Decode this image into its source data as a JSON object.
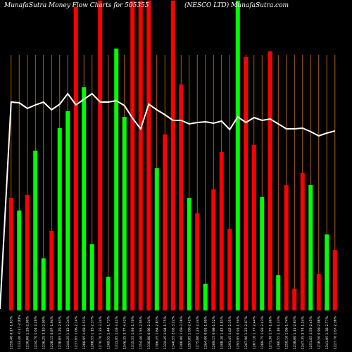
{
  "chart_data": {
    "type": "bar",
    "title_left": "MunafaSutra  Money Flow  Charts for 505355",
    "title_right": "(NESCO LTD) MunafaSutra.com",
    "colors": {
      "background": "#000000",
      "up": "#00ff00",
      "down": "#ff0000",
      "grid": "#cc6600",
      "line": "#ffffff",
      "text": "#ffffff"
    },
    "ylim": [
      0,
      440
    ],
    "line_ylim": [
      0,
      440
    ],
    "categories": [
      "1259.40 0.17-1.83%",
      "1233.40 -0.47-2.00%",
      "1230.80 1.29-2.00%",
      "1234.70 1.64-2.26%",
      "1236.25 2.10-2.90%",
      "1228.15 0.97-1.94%",
      "1238.85 1.29-2.63%",
      "1244.25 1.12-2.34%",
      "1237.65 1.06-2.14%",
      "1286.95 1.69-1.51%",
      "1268.55 1.15-2.37%",
      "1270.70 1.23-3.24%",
      "1269.55 1.44-1.73%",
      "1311.05 1.03-3.41%",
      "1346.35 2.77-4.42%",
      "1315.55 1.93-1.70%",
      "1354.40 1.55-2.95%",
      "1330.80 0.96-2.34%",
      "1306.25 1.84-2.83%",
      "1324.45 1.94-1.75%",
      "1346.55 2.02-3.22%",
      "1306.00 1.69-3.28%",
      "1297.05 1.00-2.42%",
      "1275.80 1.23-2.34%",
      "1264.00 0.93-1.09%",
      "1269.15 0.98-1.52%",
      "1308.30 1.42-1.81%",
      "1291.45 1.62-2.35%",
      "1293.05 0.91-1.50%",
      "1267.90 1.23-2.67%",
      "1287.10 1.77-2.44%",
      "1289.75 1.92-2.43%",
      "1271.30 1.77-1.66%",
      "1266.55 1.18-1.33%",
      "1250.10 1.06-1.74%",
      "1238.60 1.11-2.83%",
      "1247.35 2.74-1.24%",
      "1251.65 1.53-2.45%",
      "1218.50 0.99-2.98%",
      "1241.05 1.38-2.77%",
      "1227.70 1.67-2.38%"
    ],
    "series": [
      {
        "values": [
          160,
          142,
          164,
          227,
          74,
          113,
          259,
          283,
          431,
          317,
          94,
          440,
          48,
          372,
          275,
          440,
          440,
          440,
          202,
          250,
          440,
          321,
          160,
          138,
          38,
          172,
          225,
          116,
          440,
          360,
          235,
          161,
          368,
          50,
          178,
          31,
          195,
          178,
          52,
          108,
          86
        ],
        "directions": [
          "down",
          "up",
          "down",
          "up",
          "up",
          "down",
          "up",
          "up",
          "down",
          "up",
          "up",
          "down",
          "up",
          "up",
          "up",
          "down",
          "down",
          "down",
          "up",
          "down",
          "down",
          "down",
          "up",
          "down",
          "up",
          "down",
          "down",
          "down",
          "up",
          "down",
          "down",
          "up",
          "down",
          "up",
          "down",
          "down",
          "down",
          "up",
          "down",
          "up",
          "down"
        ]
      },
      {
        "type": "line",
        "values": [
          296,
          295,
          287,
          292,
          296,
          285,
          293,
          308,
          292,
          300,
          308,
          296,
          296,
          298,
          291,
          273,
          258,
          293,
          285,
          278,
          270,
          270,
          265,
          267,
          268,
          266,
          269,
          257,
          275,
          267,
          274,
          270,
          272,
          265,
          258,
          258,
          259,
          254,
          248,
          252,
          255
        ]
      }
    ]
  }
}
